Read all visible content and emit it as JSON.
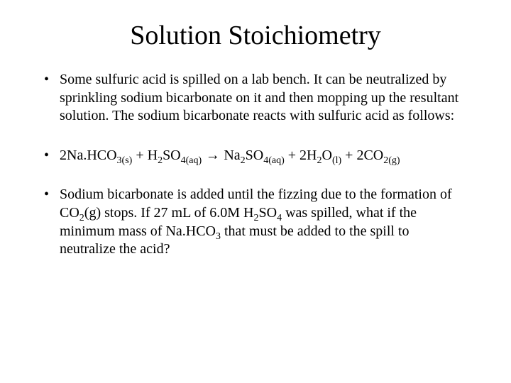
{
  "title": "Solution Stoichiometry",
  "bullets": {
    "b1": "Some sulfuric acid is spilled on a lab bench.  It can be neutralized by sprinkling sodium bicarbonate on it and then mopping up the resultant solution.  The sodium bicarbonate reacts with sulfuric acid as follows:",
    "b2": {
      "r1_coef": "2",
      "r1_prefix": "Na.HCO",
      "r1_sub": "3(s)",
      "plus1": " + ",
      "r2_prefix": "H",
      "r2_sub1": "2",
      "r2_mid": "SO",
      "r2_sub2": "4(aq)",
      "arrow": " → ",
      "p1_prefix": "Na",
      "p1_sub1": "2",
      "p1_mid": "SO",
      "p1_sub2": "4(aq)",
      "plus2": " + ",
      "p2_coef": "2",
      "p2_prefix": "H",
      "p2_sub1": "2",
      "p2_mid": "O",
      "p2_sub2": "(l)",
      "plus3": " + ",
      "p3_coef": "2",
      "p3_prefix": "CO",
      "p3_sub": "2(g)"
    },
    "b3": {
      "t1": "Sodium bicarbonate is added until the fizzing due to the formation of CO",
      "s1": "2",
      "t2": "(g) stops.  If 27 mL of 6.0M H",
      "s2": "2",
      "t3": "SO",
      "s3": "4",
      "t4": " was spilled, what if the minimum mass of Na.HCO",
      "s4": "3",
      "t5": " that must be added to the spill to neutralize the acid?"
    }
  }
}
